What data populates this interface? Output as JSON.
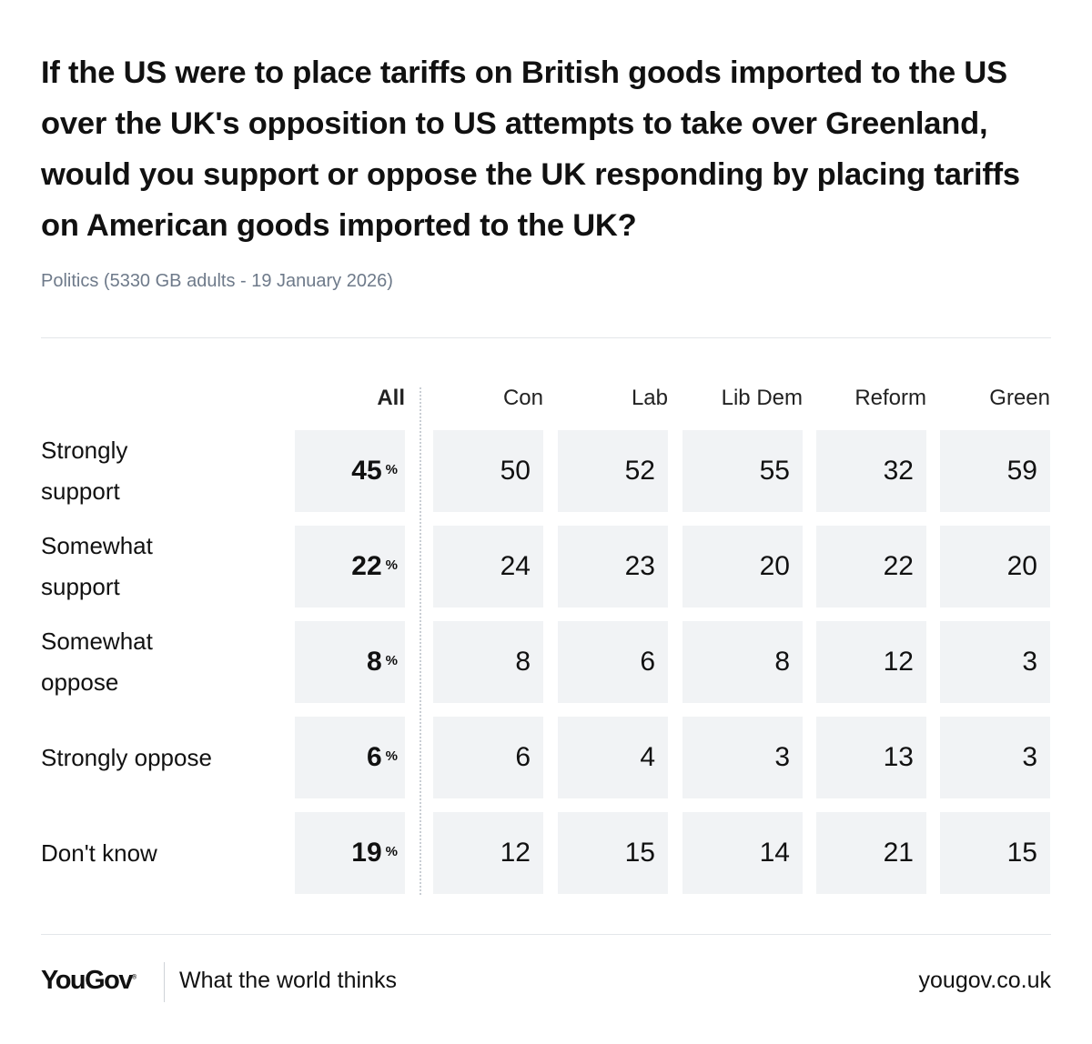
{
  "title": "If the US were to place tariffs on British goods imported to the US over the UK's opposition to US attempts to take over Greenland, would you support or oppose the UK responding by placing tariffs on American goods imported to the UK?",
  "subtitle": "Politics (5330 GB adults - 19 January 2026)",
  "chart_data": {
    "type": "table",
    "columns": [
      "All",
      "Con",
      "Lab",
      "Lib Dem",
      "Reform",
      "Green"
    ],
    "unit": "%",
    "rows": [
      {
        "label_lines": [
          "Strongly",
          "support"
        ],
        "values": [
          "45",
          "50",
          "52",
          "55",
          "32",
          "59"
        ]
      },
      {
        "label_lines": [
          "Somewhat",
          "support"
        ],
        "values": [
          "22",
          "24",
          "23",
          "20",
          "22",
          "20"
        ]
      },
      {
        "label_lines": [
          "Somewhat",
          "oppose"
        ],
        "values": [
          "8",
          "8",
          "6",
          "8",
          "12",
          "3"
        ]
      },
      {
        "label_lines": [
          "Strongly oppose"
        ],
        "values": [
          "6",
          "6",
          "4",
          "3",
          "13",
          "3"
        ]
      },
      {
        "label_lines": [
          "Don't know"
        ],
        "values": [
          "19",
          "12",
          "15",
          "14",
          "21",
          "15"
        ]
      }
    ]
  },
  "footer": {
    "brand": "YouGov",
    "trademark": "®",
    "tagline": "What the world thinks",
    "site": "yougov.co.uk"
  }
}
